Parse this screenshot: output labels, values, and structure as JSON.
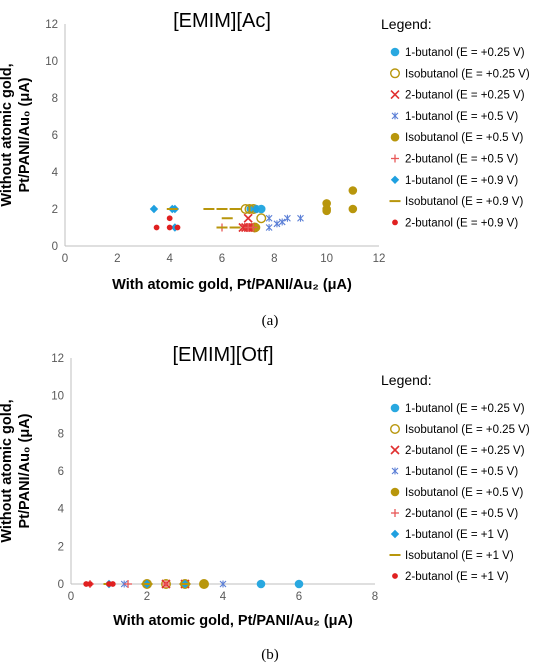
{
  "chart_data": [
    {
      "type": "scatter",
      "panel_label": "(a)",
      "title": "[EMIM][Ac]",
      "xlabel": "With atomic gold, Pt/PANI/Au₂ (μA)",
      "ylabel": "Without atomic gold, Pt/PANI/Au₀ (μA)",
      "xlim": [
        0,
        12
      ],
      "ylim": [
        0,
        12
      ],
      "xticks": [
        "0",
        "2",
        "4",
        "6",
        "8",
        "10",
        "12"
      ],
      "yticks": [
        "0",
        "2",
        "4",
        "6",
        "8",
        "10",
        "12"
      ],
      "grid": false,
      "legend_title": "Legend:",
      "legend_position": "right",
      "series": [
        {
          "name": "1-butanol (E = +0.25 V)",
          "marker": "circle-filled",
          "color": "#29A8E0",
          "points": [
            [
              7.1,
              2.0
            ],
            [
              7.3,
              2.0
            ],
            [
              7.5,
              2.0
            ],
            [
              7.2,
              1.0
            ]
          ]
        },
        {
          "name": "Isobutanol (E = +0.25 V)",
          "marker": "circle-open",
          "color": "#B8960C",
          "points": [
            [
              6.9,
              2.0
            ],
            [
              7.05,
              2.0
            ],
            [
              7.2,
              2.0
            ],
            [
              7.5,
              1.5
            ],
            [
              7.25,
              1.0
            ]
          ]
        },
        {
          "name": "2-butanol (E = +0.25 V)",
          "marker": "x",
          "color": "#E03030",
          "points": [
            [
              6.8,
              1.0
            ],
            [
              6.9,
              1.0
            ],
            [
              7.0,
              1.0
            ],
            [
              7.1,
              1.0
            ],
            [
              7.0,
              1.5
            ],
            [
              7.2,
              1.0
            ]
          ]
        },
        {
          "name": "1-butanol (E = +0.5 V)",
          "marker": "star",
          "color": "#5B7FD6",
          "points": [
            [
              7.8,
              1.0
            ],
            [
              7.8,
              1.5
            ],
            [
              8.1,
              1.2
            ],
            [
              8.3,
              1.3
            ],
            [
              8.5,
              1.5
            ],
            [
              9.0,
              1.5
            ]
          ]
        },
        {
          "name": "Isobutanol (E = +0.5 V)",
          "marker": "circle-filled",
          "color": "#B8960C",
          "points": [
            [
              7.3,
              1.0
            ],
            [
              10.0,
              1.9
            ],
            [
              10.0,
              2.0
            ],
            [
              10.0,
              2.3
            ],
            [
              11.0,
              2.0
            ],
            [
              11.0,
              3.0
            ]
          ]
        },
        {
          "name": "2-butanol (E = +0.5 V)",
          "marker": "plus",
          "color": "#E85858",
          "points": [
            [
              6.0,
              1.0
            ],
            [
              7.0,
              1.0
            ],
            [
              7.2,
              1.0
            ]
          ]
        },
        {
          "name": "1-butanol (E = +0.9 V)",
          "marker": "diamond",
          "color": "#1FA0E0",
          "points": [
            [
              3.4,
              2.0
            ],
            [
              4.1,
              2.0
            ],
            [
              4.2,
              2.0
            ],
            [
              4.2,
              1.0
            ],
            [
              7.3,
              2.0
            ]
          ]
        },
        {
          "name": "Isobutanol (E = +0.9 V)",
          "marker": "dash",
          "color": "#B8960C",
          "points": [
            [
              4.1,
              2.0
            ],
            [
              5.5,
              2.0
            ],
            [
              6.0,
              2.0
            ],
            [
              6.5,
              2.0
            ],
            [
              6.2,
              1.5
            ],
            [
              6.0,
              1.0
            ],
            [
              6.5,
              1.0
            ]
          ]
        },
        {
          "name": "2-butanol (E = +0.9 V)",
          "marker": "dot",
          "color": "#E02020",
          "points": [
            [
              3.5,
              1.0
            ],
            [
              4.0,
              1.0
            ],
            [
              4.0,
              1.5
            ],
            [
              4.3,
              1.0
            ]
          ]
        }
      ]
    },
    {
      "type": "scatter",
      "panel_label": "(b)",
      "title": "[EMIM][Otf]",
      "xlabel": "With atomic gold, Pt/PANI/Au₂ (μA)",
      "ylabel": "Without atomic gold, Pt/PANI/Au₀ (μA)",
      "xlim": [
        0,
        8
      ],
      "ylim": [
        0,
        12
      ],
      "xticks": [
        "0",
        "2",
        "4",
        "6",
        "8"
      ],
      "yticks": [
        "0",
        "2",
        "4",
        "6",
        "8",
        "10",
        "12"
      ],
      "grid": false,
      "legend_title": "Legend:",
      "legend_position": "right",
      "series": [
        {
          "name": "1-butanol (E = +0.25 V)",
          "marker": "circle-filled",
          "color": "#29A8E0",
          "points": [
            [
              2.0,
              0
            ],
            [
              3.0,
              0
            ],
            [
              5.0,
              0
            ],
            [
              6.0,
              0
            ]
          ]
        },
        {
          "name": "Isobutanol (E = +0.25 V)",
          "marker": "circle-open",
          "color": "#B8960C",
          "points": [
            [
              2.0,
              0
            ],
            [
              2.5,
              0
            ],
            [
              3.0,
              0
            ],
            [
              3.5,
              0
            ]
          ]
        },
        {
          "name": "2-butanol (E = +0.25 V)",
          "marker": "x",
          "color": "#E03030",
          "points": [
            [
              2.5,
              0
            ],
            [
              3.0,
              0
            ]
          ]
        },
        {
          "name": "1-butanol (E = +0.5 V)",
          "marker": "star",
          "color": "#5B7FD6",
          "points": [
            [
              1.4,
              0
            ],
            [
              2.0,
              0
            ],
            [
              4.0,
              0
            ]
          ]
        },
        {
          "name": "Isobutanol (E = +0.5 V)",
          "marker": "circle-filled",
          "color": "#B8960C",
          "points": [
            [
              2.0,
              0
            ],
            [
              3.0,
              0
            ],
            [
              3.5,
              0
            ]
          ]
        },
        {
          "name": "2-butanol (E = +0.5 V)",
          "marker": "plus",
          "color": "#E85858",
          "points": [
            [
              0.5,
              0
            ],
            [
              1.5,
              0
            ],
            [
              2.5,
              0
            ]
          ]
        },
        {
          "name": "1-butanol (E = +1 V)",
          "marker": "diamond",
          "color": "#1FA0E0",
          "points": [
            [
              1.0,
              0
            ],
            [
              2.0,
              0
            ],
            [
              3.0,
              0
            ]
          ]
        },
        {
          "name": "Isobutanol (E = +1 V)",
          "marker": "dash",
          "color": "#B8960C",
          "points": [
            [
              1.0,
              0
            ],
            [
              2.0,
              0
            ],
            [
              3.0,
              0
            ]
          ]
        },
        {
          "name": "2-butanol (E = +1 V)",
          "marker": "dot",
          "color": "#E02020",
          "points": [
            [
              0.4,
              0
            ],
            [
              0.5,
              0
            ],
            [
              1.1,
              0
            ],
            [
              1.0,
              0
            ]
          ]
        }
      ]
    }
  ]
}
